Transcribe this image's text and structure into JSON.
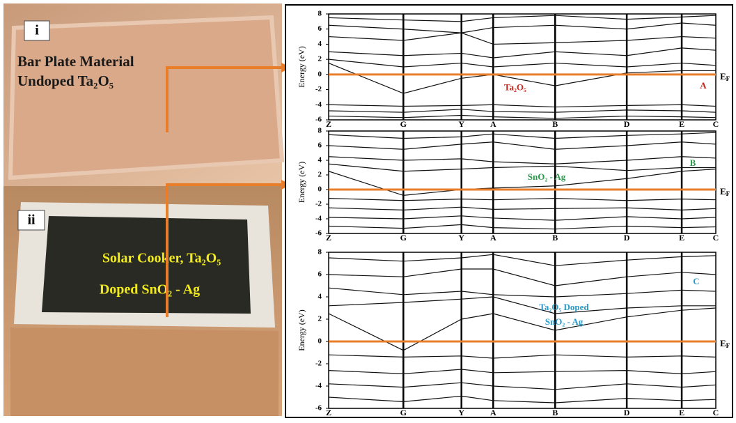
{
  "photos": {
    "top": {
      "tag": "i",
      "line1": "Bar Plate Material",
      "line2": "Undoped Ta₂O₅"
    },
    "bottom": {
      "tag": "ii",
      "line1": "Solar Cooker, Ta₂O₅",
      "line2": "Doped SnO₂ - Ag"
    }
  },
  "chart_data": [
    {
      "type": "line",
      "y_label": "Energy (eV)",
      "categories": [
        "Z",
        "G",
        "Y",
        "A",
        "B",
        "D",
        "E",
        "C"
      ],
      "ylim": [
        -6,
        8
      ],
      "yticks": [
        -6,
        -4,
        -2,
        0,
        2,
        4,
        6,
        8
      ],
      "fermi_level": 0,
      "fermi_label": {
        "main": "E",
        "sub": "F"
      },
      "fermi_color": "#e87d2a",
      "annotations": [
        {
          "text": "Ta₂O₅",
          "color": "#c0281e"
        },
        {
          "text": "A",
          "color": "#c0281e"
        }
      ],
      "series": [
        {
          "values": [
            -4,
            -4.2,
            -4.1,
            -4,
            -4.3,
            -4.1,
            -4,
            -4.2
          ]
        },
        {
          "values": [
            -4.8,
            -5,
            -4.6,
            -4.9,
            -5,
            -4.7,
            -4.8,
            -5
          ]
        },
        {
          "values": [
            -5.5,
            -5.7,
            -5.4,
            -5.6,
            -5.8,
            -5.5,
            -5.6,
            -5.7
          ]
        },
        {
          "values": [
            1.5,
            -2.5,
            -0.5,
            0,
            -1.5,
            0.2,
            0.5,
            0.5
          ]
        },
        {
          "values": [
            2,
            1,
            1.5,
            1,
            1.5,
            1,
            1.5,
            1.2
          ]
        },
        {
          "values": [
            3,
            2.5,
            2.8,
            2.2,
            3,
            2.5,
            3.5,
            3.2
          ]
        },
        {
          "values": [
            5,
            4.5,
            5.5,
            4,
            4.2,
            4.5,
            5,
            4.8
          ]
        },
        {
          "values": [
            6.5,
            6,
            5.5,
            6.2,
            6.5,
            6,
            6.8,
            6.5
          ]
        },
        {
          "values": [
            7.5,
            7.2,
            7,
            7.5,
            7.8,
            7.3,
            7.6,
            7.8
          ]
        }
      ]
    },
    {
      "type": "line",
      "y_label": "Energy (eV)",
      "categories": [
        "Z",
        "G",
        "Y",
        "A",
        "B",
        "D",
        "E",
        "C"
      ],
      "ylim": [
        -6,
        8
      ],
      "yticks": [
        -6,
        -4,
        -2,
        0,
        2,
        4,
        6,
        8
      ],
      "fermi_level": 0,
      "fermi_label": {
        "main": "E",
        "sub": "F"
      },
      "fermi_color": "#e87d2a",
      "annotations": [
        {
          "text": "SnO₂ - Ag",
          "color": "#2a9a4a"
        },
        {
          "text": "B",
          "color": "#2a9a4a"
        }
      ],
      "series": [
        {
          "values": [
            2.5,
            -0.8,
            0,
            0.2,
            0.5,
            1.5,
            2.5,
            2.8
          ]
        },
        {
          "values": [
            3.5,
            2.5,
            2.8,
            3,
            3.2,
            2.6,
            3,
            3
          ]
        },
        {
          "values": [
            4.5,
            4,
            4.2,
            3.8,
            3.5,
            4,
            4.5,
            4.3
          ]
        },
        {
          "values": [
            6,
            5.5,
            6.2,
            6.5,
            5.5,
            6,
            6.5,
            6.2
          ]
        },
        {
          "values": [
            7.5,
            7,
            7.2,
            7.6,
            7,
            7.4,
            7.6,
            7.8
          ]
        },
        {
          "values": [
            -1.2,
            -1.5,
            -1.3,
            -1.4,
            -1.2,
            -1.5,
            -1.3,
            -1.4
          ]
        },
        {
          "values": [
            -2.5,
            -2.8,
            -2.4,
            -2.7,
            -2.6,
            -2.5,
            -2.8,
            -2.6
          ]
        },
        {
          "values": [
            -3.8,
            -4,
            -3.6,
            -3.9,
            -4.2,
            -3.7,
            -4,
            -3.8
          ]
        },
        {
          "values": [
            -5,
            -5.3,
            -4.8,
            -5.2,
            -5.4,
            -5,
            -5.2,
            -5.1
          ]
        }
      ]
    },
    {
      "type": "line",
      "y_label": "Energy (eV)",
      "categories": [
        "Z",
        "G",
        "Y",
        "A",
        "B",
        "D",
        "E",
        "C"
      ],
      "ylim": [
        -6,
        8
      ],
      "yticks": [
        -6,
        -4,
        -2,
        0,
        2,
        4,
        6,
        8
      ],
      "fermi_level": 0,
      "fermi_label": {
        "main": "E",
        "sub": "F"
      },
      "fermi_color": "#e87d2a",
      "annotations": [
        {
          "text": "Ta₂O₅ Doped",
          "color": "#2a9ac8"
        },
        {
          "text": "SnO₂ - Ag",
          "color": "#2a9ac8"
        },
        {
          "text": "C",
          "color": "#2a9ac8"
        }
      ],
      "series": [
        {
          "values": [
            2.5,
            -0.8,
            2,
            2.5,
            1,
            2.2,
            2.8,
            3
          ]
        },
        {
          "values": [
            3.2,
            3.5,
            3.8,
            4,
            2.5,
            3,
            3.2,
            3.2
          ]
        },
        {
          "values": [
            4.8,
            4.2,
            4.5,
            4.2,
            4,
            4.3,
            4.6,
            4.5
          ]
        },
        {
          "values": [
            6,
            5.8,
            6.5,
            6.5,
            5,
            5.8,
            6.2,
            6
          ]
        },
        {
          "values": [
            7.5,
            7.2,
            7.5,
            7.8,
            6.8,
            7.3,
            7.6,
            7.7
          ]
        },
        {
          "values": [
            -1.2,
            -1.4,
            -1.3,
            -1.5,
            -1.2,
            -1.4,
            -1.3,
            -1.4
          ]
        },
        {
          "values": [
            -2.6,
            -2.9,
            -2.5,
            -2.8,
            -2.7,
            -2.6,
            -2.9,
            -2.7
          ]
        },
        {
          "values": [
            -3.8,
            -4.1,
            -3.7,
            -4,
            -4.3,
            -3.8,
            -4.1,
            -3.9
          ]
        },
        {
          "values": [
            -5,
            -5.4,
            -4.9,
            -5.3,
            -5.5,
            -5.1,
            -5.3,
            -5.2
          ]
        }
      ]
    }
  ]
}
